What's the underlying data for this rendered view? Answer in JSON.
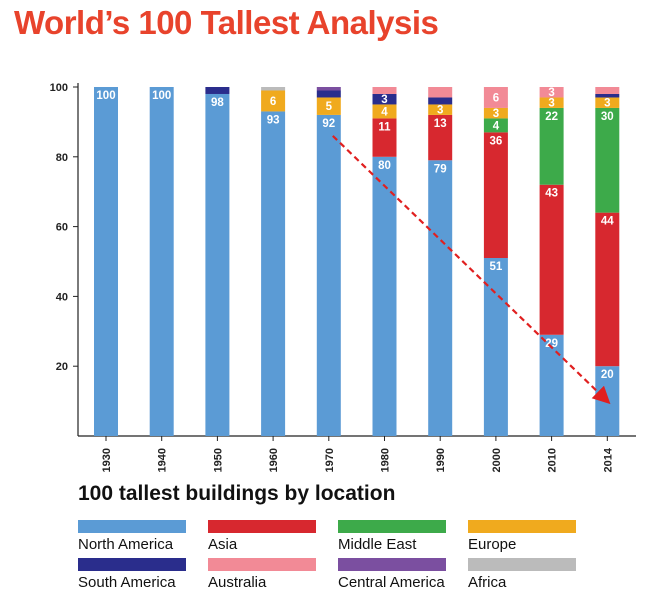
{
  "chart_data": {
    "type": "bar",
    "stacked": true,
    "title": "World’s 100 Tallest Analysis",
    "subtitle": "100 tallest buildings by location",
    "xlabel": "",
    "ylabel": "",
    "ylim": [
      0,
      100
    ],
    "yticks": [
      20,
      40,
      60,
      80,
      100
    ],
    "categories": [
      "1930",
      "1940",
      "1950",
      "1960",
      "1970",
      "1980",
      "1990",
      "2000",
      "2010",
      "2014"
    ],
    "series": [
      {
        "name": "North America",
        "color": "#5b9bd5",
        "values": [
          100,
          100,
          98,
          93,
          92,
          80,
          79,
          51,
          29,
          20
        ]
      },
      {
        "name": "Asia",
        "color": "#d7282f",
        "values": [
          0,
          0,
          0,
          0,
          0,
          11,
          13,
          36,
          43,
          44
        ]
      },
      {
        "name": "Middle East",
        "color": "#3daa4a",
        "values": [
          0,
          0,
          0,
          0,
          0,
          0,
          0,
          4,
          22,
          30
        ]
      },
      {
        "name": "Europe",
        "color": "#f0aa1e",
        "values": [
          0,
          0,
          0,
          6,
          5,
          4,
          3,
          3,
          3,
          3
        ]
      },
      {
        "name": "South America",
        "color": "#2a2d8c",
        "values": [
          0,
          0,
          2,
          0,
          2,
          3,
          2,
          0,
          0,
          1
        ]
      },
      {
        "name": "Australia",
        "color": "#f28a96",
        "values": [
          0,
          0,
          0,
          0,
          0,
          2,
          3,
          6,
          3,
          2
        ]
      },
      {
        "name": "Central America",
        "color": "#7b4fa0",
        "values": [
          0,
          0,
          0,
          0,
          1,
          0,
          0,
          0,
          0,
          0
        ]
      },
      {
        "name": "Africa",
        "color": "#bbbbbb",
        "values": [
          0,
          0,
          0,
          1,
          0,
          0,
          0,
          0,
          0,
          0
        ]
      }
    ],
    "data_labels": [
      {
        "category": "1930",
        "series": "North America",
        "text": "100"
      },
      {
        "category": "1940",
        "series": "North America",
        "text": "100"
      },
      {
        "category": "1950",
        "series": "North America",
        "text": "98"
      },
      {
        "category": "1960",
        "series": "North America",
        "text": "93"
      },
      {
        "category": "1960",
        "series": "Europe",
        "text": "6"
      },
      {
        "category": "1970",
        "series": "North America",
        "text": "92"
      },
      {
        "category": "1970",
        "series": "Europe",
        "text": "5"
      },
      {
        "category": "1980",
        "series": "North America",
        "text": "80"
      },
      {
        "category": "1980",
        "series": "Asia",
        "text": "11"
      },
      {
        "category": "1980",
        "series": "Europe",
        "text": "4"
      },
      {
        "category": "1980",
        "series": "South America",
        "text": "3"
      },
      {
        "category": "1990",
        "series": "North America",
        "text": "79"
      },
      {
        "category": "1990",
        "series": "Asia",
        "text": "13"
      },
      {
        "category": "1990",
        "series": "Europe",
        "text": "3"
      },
      {
        "category": "2000",
        "series": "North America",
        "text": "51"
      },
      {
        "category": "2000",
        "series": "Asia",
        "text": "36"
      },
      {
        "category": "2000",
        "series": "Middle East",
        "text": "4"
      },
      {
        "category": "2000",
        "series": "Europe",
        "text": "3"
      },
      {
        "category": "2000",
        "series": "Australia",
        "text": "6"
      },
      {
        "category": "2010",
        "series": "North America",
        "text": "29"
      },
      {
        "category": "2010",
        "series": "Asia",
        "text": "43"
      },
      {
        "category": "2010",
        "series": "Middle East",
        "text": "22"
      },
      {
        "category": "2010",
        "series": "Europe",
        "text": "3"
      },
      {
        "category": "2010",
        "series": "Australia",
        "text": "3"
      },
      {
        "category": "2014",
        "series": "North America",
        "text": "20"
      },
      {
        "category": "2014",
        "series": "Asia",
        "text": "44"
      },
      {
        "category": "2014",
        "series": "Middle East",
        "text": "30"
      },
      {
        "category": "2014",
        "series": "Europe",
        "text": "3"
      }
    ],
    "annotations": [
      {
        "type": "arrow",
        "style": "dashed",
        "color": "#e02020",
        "from": {
          "x": "1970",
          "y": 86
        },
        "to": {
          "x": "2014",
          "y": 10
        }
      }
    ],
    "legend_position": "bottom"
  }
}
